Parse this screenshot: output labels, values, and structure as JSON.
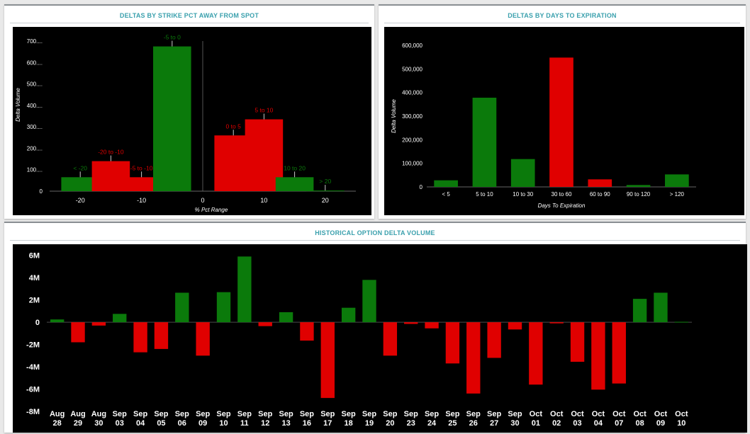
{
  "panels": {
    "strike": {
      "title": "DELTAS BY STRIKE PCT AWAY FROM SPOT"
    },
    "expiry": {
      "title": "DELTAS BY DAYS TO EXPIRATION"
    },
    "history": {
      "title": "HISTORICAL OPTION DELTA VOLUME"
    }
  },
  "colors": {
    "positive": "#0b7a0b",
    "negative": "#e00000",
    "background": "#000000",
    "text": "#ffffff",
    "title": "#3aa0ad"
  },
  "chart_data": [
    {
      "id": "strike",
      "type": "bar",
      "title": "DELTAS BY STRIKE PCT AWAY FROM SPOT",
      "xlabel": "% Pct Range",
      "ylabel": "Delta Volume",
      "xlim": [
        -25,
        25
      ],
      "ylim": [
        0,
        700
      ],
      "xticks": [
        "-20",
        "-10",
        "0",
        "10",
        "20"
      ],
      "xtick_values": [
        -20,
        -10,
        0,
        10,
        20
      ],
      "yticks": [
        "0",
        "100....",
        "200....",
        "300....",
        "400....",
        "500....",
        "600....",
        "700...."
      ],
      "ytick_values": [
        0,
        100,
        200,
        300,
        400,
        500,
        600,
        700
      ],
      "bars": [
        {
          "label": "< -20",
          "center": -20,
          "value": 65,
          "color": "green"
        },
        {
          "label": "-20 to -10",
          "center": -15,
          "value": 140,
          "color": "red"
        },
        {
          "label": "-5 to -10",
          "center": -10,
          "value": 65,
          "color": "red"
        },
        {
          "label": "-5 to 0",
          "center": -5,
          "value": 675,
          "color": "green"
        },
        {
          "label": "0 to 5",
          "center": 5,
          "value": 260,
          "color": "red"
        },
        {
          "label": "5 to 10",
          "center": 10,
          "value": 335,
          "color": "red"
        },
        {
          "label": "10 to 20",
          "center": 15,
          "value": 65,
          "color": "green"
        },
        {
          "label": "> 20",
          "center": 20,
          "value": 3,
          "color": "green"
        }
      ]
    },
    {
      "id": "expiry",
      "type": "bar",
      "title": "DELTAS BY DAYS TO EXPIRATION",
      "xlabel": "Days To Expiration",
      "ylabel": "Delta Volume",
      "ylim": [
        0,
        600000
      ],
      "yticks": [
        "0",
        "100,000",
        "200,000",
        "300,000",
        "400,000",
        "500,000",
        "600,000"
      ],
      "ytick_values": [
        0,
        100000,
        200000,
        300000,
        400000,
        500000,
        600000
      ],
      "categories": [
        "< 5",
        "5 to 10",
        "10 to 30",
        "30 to 60",
        "60 to 90",
        "90 to 120",
        "> 120"
      ],
      "values": [
        28000,
        378000,
        118000,
        548000,
        32000,
        8000,
        53000
      ],
      "bar_colors": [
        "green",
        "green",
        "green",
        "red",
        "red",
        "green",
        "green"
      ]
    },
    {
      "id": "history",
      "type": "bar",
      "title": "HISTORICAL OPTION DELTA VOLUME",
      "ylim": [
        -8000000,
        7000000
      ],
      "yticks": [
        "-8M",
        "-6M",
        "-4M",
        "-2M",
        "0",
        "2M",
        "4M",
        "6M"
      ],
      "ytick_values": [
        -8000000,
        -6000000,
        -4000000,
        -2000000,
        0,
        2000000,
        4000000,
        6000000
      ],
      "categories": [
        [
          "Aug",
          "28"
        ],
        [
          "Aug",
          "29"
        ],
        [
          "Aug",
          "30"
        ],
        [
          "Sep",
          "03"
        ],
        [
          "Sep",
          "04"
        ],
        [
          "Sep",
          "05"
        ],
        [
          "Sep",
          "06"
        ],
        [
          "Sep",
          "09"
        ],
        [
          "Sep",
          "10"
        ],
        [
          "Sep",
          "11"
        ],
        [
          "Sep",
          "12"
        ],
        [
          "Sep",
          "13"
        ],
        [
          "Sep",
          "16"
        ],
        [
          "Sep",
          "17"
        ],
        [
          "Sep",
          "18"
        ],
        [
          "Sep",
          "19"
        ],
        [
          "Sep",
          "20"
        ],
        [
          "Sep",
          "23"
        ],
        [
          "Sep",
          "24"
        ],
        [
          "Sep",
          "25"
        ],
        [
          "Sep",
          "26"
        ],
        [
          "Sep",
          "27"
        ],
        [
          "Sep",
          "30"
        ],
        [
          "Oct",
          "01"
        ],
        [
          "Oct",
          "02"
        ],
        [
          "Oct",
          "03"
        ],
        [
          "Oct",
          "04"
        ],
        [
          "Oct",
          "07"
        ],
        [
          "Oct",
          "08"
        ],
        [
          "Oct",
          "09"
        ],
        [
          "Oct",
          "10"
        ]
      ],
      "values": [
        250000,
        -1800000,
        -300000,
        750000,
        -2700000,
        -2400000,
        2650000,
        -3000000,
        2700000,
        5900000,
        -350000,
        900000,
        -1650000,
        -6800000,
        1300000,
        3800000,
        -3000000,
        -150000,
        -550000,
        -3700000,
        -6400000,
        -3200000,
        -650000,
        -5600000,
        -100000,
        -3550000,
        -6050000,
        -5500000,
        2100000,
        2650000,
        40000
      ]
    }
  ]
}
